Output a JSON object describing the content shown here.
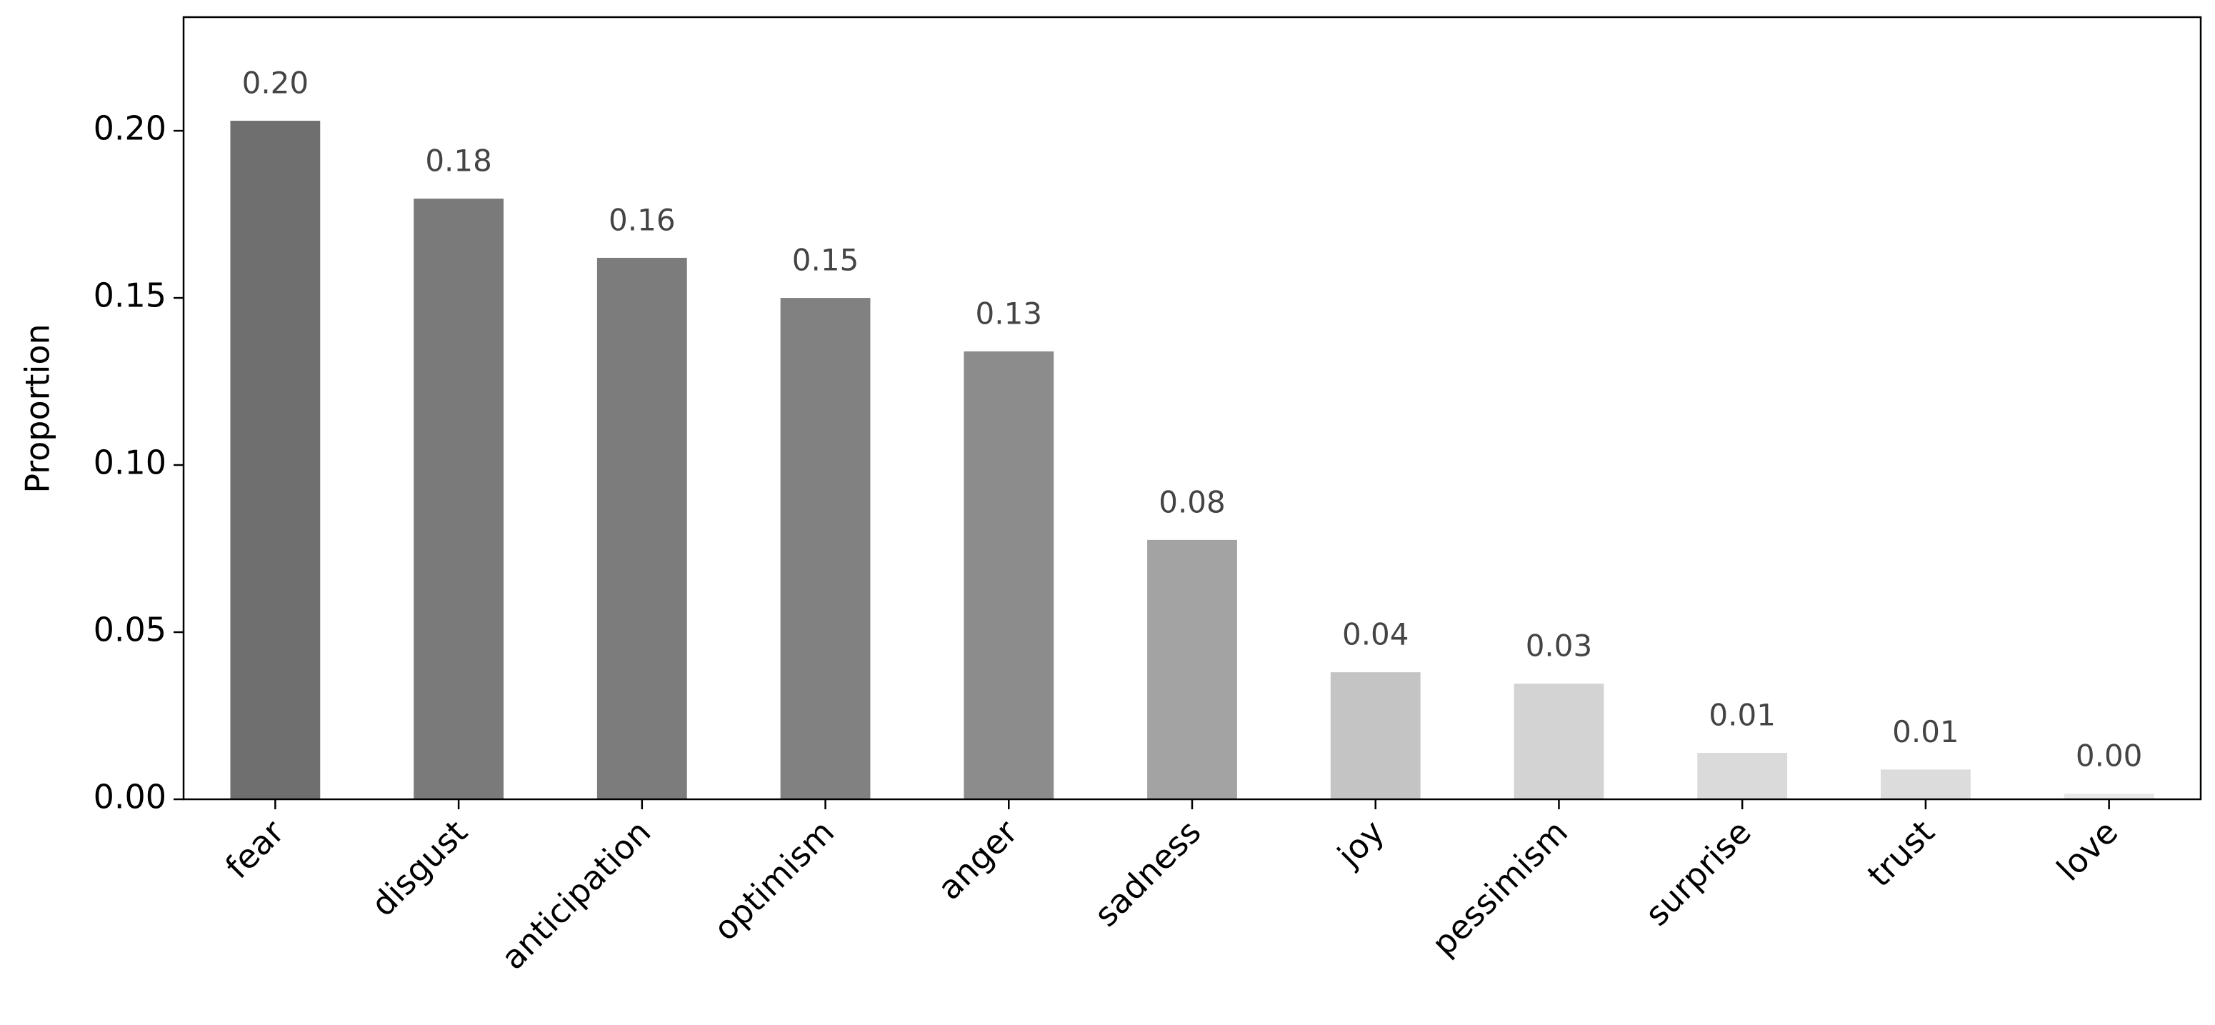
{
  "chart_data": {
    "type": "bar",
    "y_label": "Proportion",
    "categories": [
      "fear",
      "disgust",
      "anticipation",
      "optimism",
      "anger",
      "sadness",
      "joy",
      "pessimism",
      "surprise",
      "trust",
      "love"
    ],
    "values": [
      0.203,
      0.1797,
      0.162,
      0.15,
      0.134,
      0.0776,
      0.038,
      0.0346,
      0.0139,
      0.0089,
      0.0017
    ],
    "value_labels": [
      "0.20",
      "0.18",
      "0.16",
      "0.15",
      "0.13",
      "0.08",
      "0.04",
      "0.03",
      "0.01",
      "0.01",
      "0.00"
    ],
    "colors": [
      "#6f6f6f",
      "#7a7a7a",
      "#7c7c7c",
      "#818181",
      "#8c8c8c",
      "#a3a3a3",
      "#c4c4c4",
      "#d3d3d3",
      "#dadada",
      "#dcdcdc",
      "#e8e8e8"
    ],
    "ylim": [
      0,
      0.234
    ],
    "yticks": [
      {
        "value": 0,
        "label": "0.00"
      },
      {
        "value": 0.05,
        "label": "0.05"
      },
      {
        "value": 0.1,
        "label": "0.10"
      },
      {
        "value": 0.15,
        "label": "0.15"
      },
      {
        "value": 0.2,
        "label": "0.20"
      }
    ],
    "grid": false
  }
}
